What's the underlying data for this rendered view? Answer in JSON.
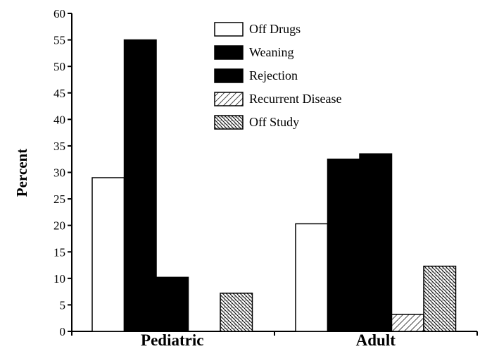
{
  "chart_data": {
    "type": "bar",
    "title": "",
    "xlabel": "",
    "ylabel": "Percent",
    "ylim": [
      0,
      60
    ],
    "yticks": [
      0,
      5,
      10,
      15,
      20,
      25,
      30,
      35,
      40,
      45,
      50,
      55,
      60
    ],
    "categories": [
      "Pediatric",
      "Adult"
    ],
    "series": [
      {
        "name": "Off Drugs",
        "values": [
          29,
          20.3
        ],
        "fill": "white"
      },
      {
        "name": "Weaning",
        "values": [
          55,
          32.5
        ],
        "fill": "black"
      },
      {
        "name": "Rejection",
        "values": [
          10.2,
          33.5
        ],
        "fill": "black"
      },
      {
        "name": "Recurrent Disease",
        "values": [
          0,
          3.2
        ],
        "fill": "diagonal-hatch"
      },
      {
        "name": "Off Study",
        "values": [
          7.2,
          12.3
        ],
        "fill": "cross-hatch"
      }
    ],
    "grid": false,
    "legend": "top-right"
  }
}
